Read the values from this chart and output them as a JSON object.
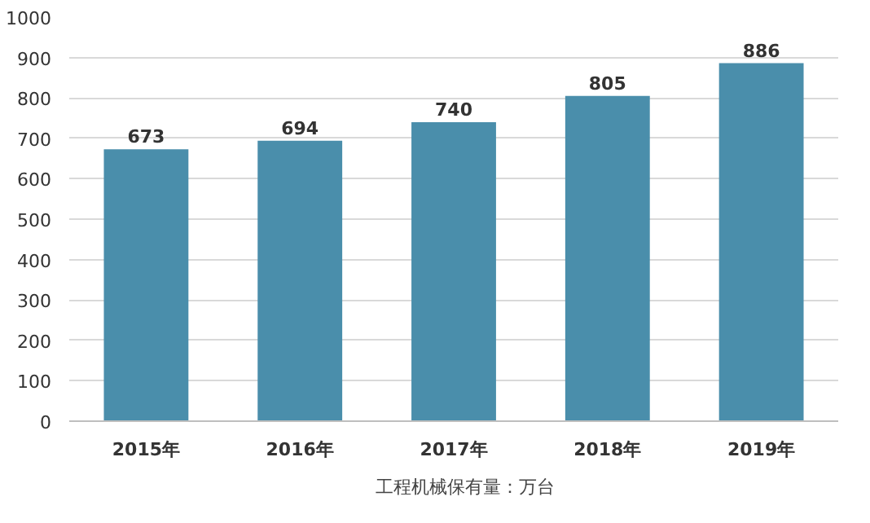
{
  "chart_data": {
    "type": "bar",
    "categories": [
      "2015年",
      "2016年",
      "2017年",
      "2018年",
      "2019年"
    ],
    "series": [
      {
        "name": "工程机械保有量：万台",
        "color": "#4a8eab",
        "values": [
          673,
          694,
          740,
          805,
          886
        ]
      }
    ],
    "ylim": [
      0,
      1000
    ],
    "yticks": [
      0,
      100,
      200,
      300,
      400,
      500,
      600,
      700,
      800,
      900,
      1000
    ],
    "grid": "y",
    "legend": "bottom",
    "data_labels": true
  }
}
